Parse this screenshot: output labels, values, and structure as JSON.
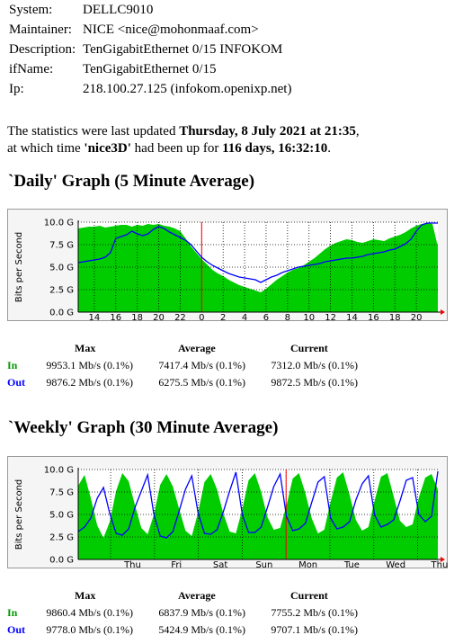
{
  "info": [
    {
      "label": "System:",
      "value": "DELLC9010"
    },
    {
      "label": "Maintainer:",
      "value": "NICE <nice@mohonmaaf.com>"
    },
    {
      "label": "Description:",
      "value": "TenGigabitEthernet 0/15 INFOKOM"
    },
    {
      "label": "ifName:",
      "value": "TenGigabitEthernet 0/15"
    },
    {
      "label": "Ip:",
      "value": "218.100.27.125 (infokom.openixp.net)"
    }
  ],
  "update": {
    "prefix": "The statistics were last updated ",
    "date": "Thursday, 8 July 2021 at 21:35",
    "suffix1": ",",
    "prefix2": "at which time ",
    "device": "'nice3D'",
    "mid": " had been up for ",
    "uptime": "116 days, 16:32:10",
    "suffix2": "."
  },
  "daily": {
    "title": "`Daily' Graph (5 Minute Average)",
    "stats": {
      "headers": [
        "Max",
        "Average",
        "Current"
      ],
      "rows": [
        {
          "label": "In",
          "values": [
            "9953.1 Mb/s (0.1%)",
            "7417.4 Mb/s (0.1%)",
            "7312.0 Mb/s (0.1%)"
          ]
        },
        {
          "label": "Out",
          "values": [
            "9876.2 Mb/s (0.1%)",
            "6275.5 Mb/s (0.1%)",
            "9872.5 Mb/s (0.1%)"
          ]
        }
      ]
    }
  },
  "weekly": {
    "title": "`Weekly' Graph (30 Minute Average)",
    "stats": {
      "headers": [
        "Max",
        "Average",
        "Current"
      ],
      "rows": [
        {
          "label": "In",
          "values": [
            "9860.4 Mb/s (0.1%)",
            "6837.9 Mb/s (0.1%)",
            "7755.2 Mb/s (0.1%)"
          ]
        },
        {
          "label": "Out",
          "values": [
            "9778.0 Mb/s (0.1%)",
            "5424.9 Mb/s (0.1%)",
            "9707.1 Mb/s (0.1%)"
          ]
        }
      ]
    }
  },
  "colors": {
    "in": "#00cc00",
    "out": "#0000ff",
    "marker": "#ff0000",
    "label_in": "#009900",
    "label_out": "#0000ff"
  },
  "chart_data": [
    {
      "type": "area",
      "ylabel": "Bits per Second",
      "y_ticks": [
        "0.0 G",
        "2.5 G",
        "5.0 G",
        "7.5 G",
        "10.0 G"
      ],
      "ylim": [
        0,
        10
      ],
      "x_tick_labels": [
        "14",
        "16",
        "18",
        "20",
        "22",
        "0",
        "2",
        "4",
        "6",
        "8",
        "10",
        "12",
        "14",
        "16",
        "18",
        "20"
      ],
      "x_range_hours": [
        12.5,
        22.0
      ],
      "grid": true,
      "series": [
        {
          "name": "In",
          "x": [
            12.5,
            13,
            13.5,
            14,
            14.5,
            15,
            15.5,
            16,
            16.5,
            17,
            17.5,
            18,
            18.5,
            19,
            19.5,
            20,
            20.5,
            21,
            21.5,
            22,
            22.5,
            23,
            23.5,
            24,
            24.5,
            25,
            25.5,
            26,
            26.5,
            27,
            27.5,
            28,
            28.5,
            29,
            29.5,
            30,
            30.5,
            31,
            31.5,
            32,
            32.5,
            33,
            33.5,
            34,
            34.5,
            35,
            35.5,
            36,
            36.5,
            37,
            37.5,
            38,
            38.5,
            39,
            39.5,
            40,
            40.5,
            41,
            41.5,
            42,
            42.5,
            43,
            43.5,
            44,
            44.5,
            45,
            45.5,
            46
          ],
          "values": [
            9.3,
            9.4,
            9.5,
            9.5,
            9.6,
            9.4,
            9.5,
            9.6,
            9.7,
            9.7,
            9.5,
            9.7,
            9.6,
            9.8,
            9.7,
            9.8,
            9.6,
            9.5,
            9.3,
            9.0,
            8.2,
            7.3,
            6.6,
            5.9,
            5.3,
            4.7,
            4.3,
            4.0,
            3.6,
            3.3,
            3.0,
            2.8,
            2.6,
            2.4,
            2.2,
            2.6,
            3.1,
            3.6,
            4.0,
            4.4,
            4.7,
            4.9,
            5.2,
            5.6,
            6.0,
            6.5,
            7.0,
            7.4,
            7.7,
            7.9,
            8.1,
            8.0,
            7.8,
            7.7,
            7.9,
            8.1,
            8.0,
            7.9,
            8.2,
            8.4,
            8.6,
            8.9,
            9.3,
            9.6,
            9.8,
            9.9,
            9.8,
            7.3
          ]
        },
        {
          "name": "Out",
          "x": [
            12.5,
            13,
            13.5,
            14,
            14.5,
            15,
            15.5,
            16,
            16.5,
            17,
            17.5,
            18,
            18.5,
            19,
            19.5,
            20,
            20.5,
            21,
            21.5,
            22,
            22.5,
            23,
            23.5,
            24,
            24.5,
            25,
            25.5,
            26,
            26.5,
            27,
            27.5,
            28,
            28.5,
            29,
            29.5,
            30,
            30.5,
            31,
            31.5,
            32,
            32.5,
            33,
            33.5,
            34,
            34.5,
            35,
            35.5,
            36,
            36.5,
            37,
            37.5,
            38,
            38.5,
            39,
            39.5,
            40,
            40.5,
            41,
            41.5,
            42,
            42.5,
            43,
            43.5,
            44,
            44.5,
            45,
            45.5,
            46
          ],
          "values": [
            5.5,
            5.6,
            5.7,
            5.8,
            5.9,
            6.1,
            6.6,
            8.2,
            8.4,
            8.6,
            9.0,
            8.7,
            8.5,
            8.7,
            9.2,
            9.5,
            9.3,
            8.9,
            8.6,
            8.3,
            8.0,
            7.5,
            6.8,
            6.1,
            5.6,
            5.2,
            4.9,
            4.6,
            4.3,
            4.1,
            3.9,
            3.8,
            3.7,
            3.6,
            3.3,
            3.6,
            3.9,
            4.1,
            4.4,
            4.6,
            4.8,
            5.0,
            5.1,
            5.2,
            5.3,
            5.4,
            5.6,
            5.7,
            5.8,
            5.9,
            6.0,
            6.0,
            6.1,
            6.2,
            6.4,
            6.5,
            6.6,
            6.7,
            6.9,
            7.0,
            7.3,
            7.6,
            8.1,
            9.0,
            9.7,
            9.9,
            9.9,
            9.9
          ]
        }
      ]
    },
    {
      "type": "area",
      "ylabel": "Bits per Second",
      "y_ticks": [
        "0.0 G",
        "2.5 G",
        "5.0 G",
        "7.5 G",
        "10.0 G"
      ],
      "ylim": [
        0,
        10
      ],
      "x_tick_labels": [
        "Thu",
        "Fri",
        "Sat",
        "Sun",
        "Mon",
        "Tue",
        "Wed",
        "Thu"
      ],
      "grid": true,
      "series": [
        {
          "name": "In",
          "values": [
            8.2,
            9.4,
            6.8,
            3.8,
            2.4,
            4.2,
            7.6,
            9.6,
            8.7,
            6.0,
            3.5,
            2.8,
            5.0,
            8.3,
            9.5,
            8.1,
            5.6,
            3.2,
            2.6,
            5.2,
            8.6,
            9.5,
            7.8,
            5.1,
            3.1,
            2.9,
            5.6,
            8.8,
            9.6,
            7.5,
            4.7,
            3.3,
            3.5,
            6.0,
            9.0,
            9.6,
            7.4,
            4.6,
            2.9,
            3.3,
            6.4,
            9.1,
            9.7,
            7.2,
            4.4,
            3.2,
            3.6,
            6.6,
            9.2,
            9.6,
            7.0,
            4.3,
            3.6,
            3.9,
            6.9,
            9.1,
            9.5,
            7.8
          ]
        },
        {
          "name": "Out",
          "values": [
            3.1,
            3.6,
            4.6,
            6.8,
            8.0,
            5.1,
            2.9,
            2.7,
            3.4,
            5.8,
            7.6,
            9.4,
            5.0,
            2.6,
            2.4,
            3.1,
            5.4,
            7.8,
            9.3,
            5.2,
            2.9,
            2.8,
            3.3,
            5.3,
            7.6,
            9.7,
            5.0,
            3.0,
            3.0,
            3.6,
            5.8,
            8.1,
            9.5,
            4.8,
            3.2,
            3.4,
            4.0,
            6.3,
            8.6,
            9.2,
            4.6,
            3.4,
            3.6,
            4.2,
            6.6,
            8.4,
            9.3,
            4.9,
            3.6,
            3.9,
            4.4,
            6.5,
            8.8,
            9.1,
            5.0,
            4.2,
            4.8,
            9.8
          ]
        }
      ]
    }
  ]
}
